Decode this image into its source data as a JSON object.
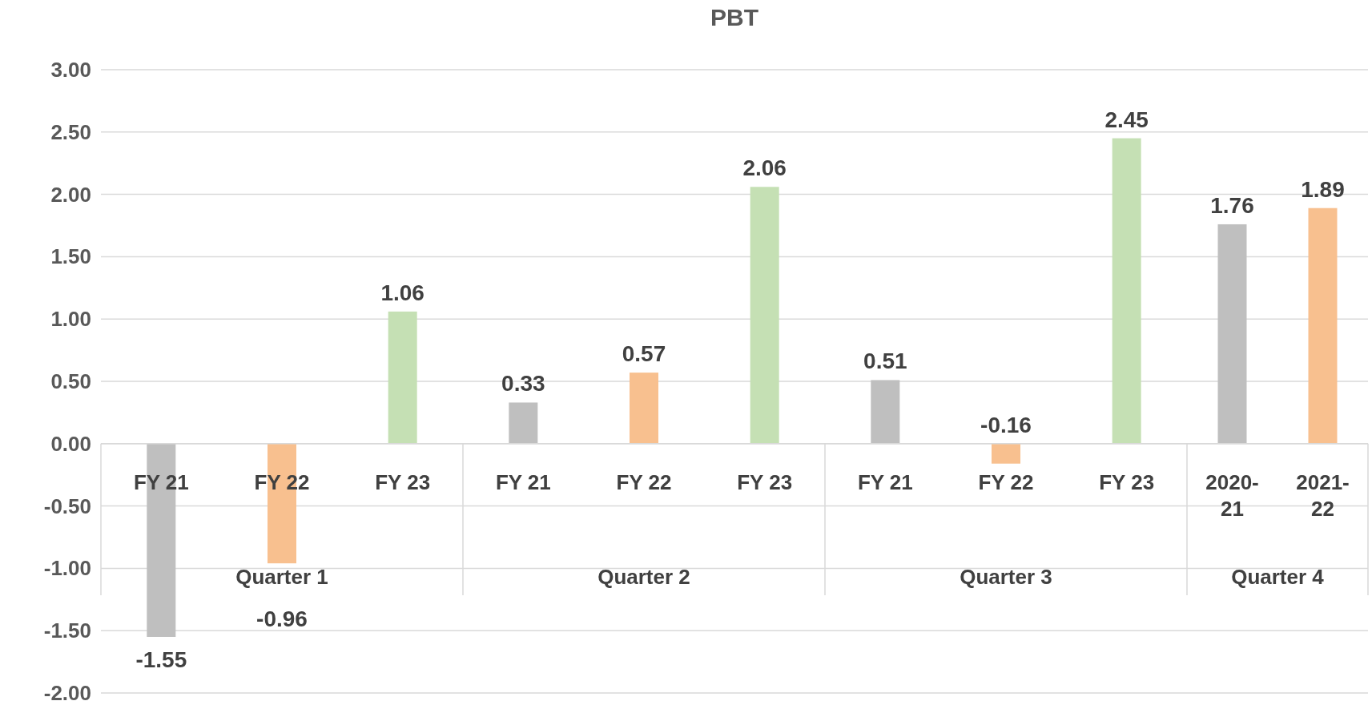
{
  "chart_data": {
    "type": "bar",
    "title": "PBT",
    "categories": [
      "FY 21",
      "FY 22",
      "FY 23",
      "FY 21",
      "FY 22",
      "FY 23",
      "FY 21",
      "FY 22",
      "FY 23",
      "2020-21",
      "2021-22"
    ],
    "values": [
      -1.55,
      -0.96,
      1.06,
      0.33,
      0.57,
      2.06,
      0.51,
      -0.16,
      2.45,
      1.76,
      1.89
    ],
    "colors": [
      "#bfbfbf",
      "#f8c08f",
      "#c5e0b4",
      "#bfbfbf",
      "#f8c08f",
      "#c5e0b4",
      "#bfbfbf",
      "#f8c08f",
      "#c5e0b4",
      "#bfbfbf",
      "#f8c08f"
    ],
    "annotations": [
      "Quarter 1",
      "Quarter 2",
      "Quarter 3",
      "Quarter 4"
    ],
    "ylim": [
      -2,
      3
    ],
    "yticks": [
      {
        "value": -2,
        "label": "-2.00"
      },
      {
        "value": -1.5,
        "label": "-1.50"
      },
      {
        "value": -1,
        "label": "-1.00"
      },
      {
        "value": -0.5,
        "label": "-0.50"
      },
      {
        "value": 0,
        "label": "0.00"
      },
      {
        "value": 0.5,
        "label": "0.50"
      },
      {
        "value": 1,
        "label": "1.00"
      },
      {
        "value": 1.5,
        "label": "1.50"
      },
      {
        "value": 2,
        "label": "2.00"
      },
      {
        "value": 2.5,
        "label": "2.50"
      },
      {
        "value": 3,
        "label": "3.00"
      }
    ],
    "grid": "y",
    "data_labels": true
  }
}
